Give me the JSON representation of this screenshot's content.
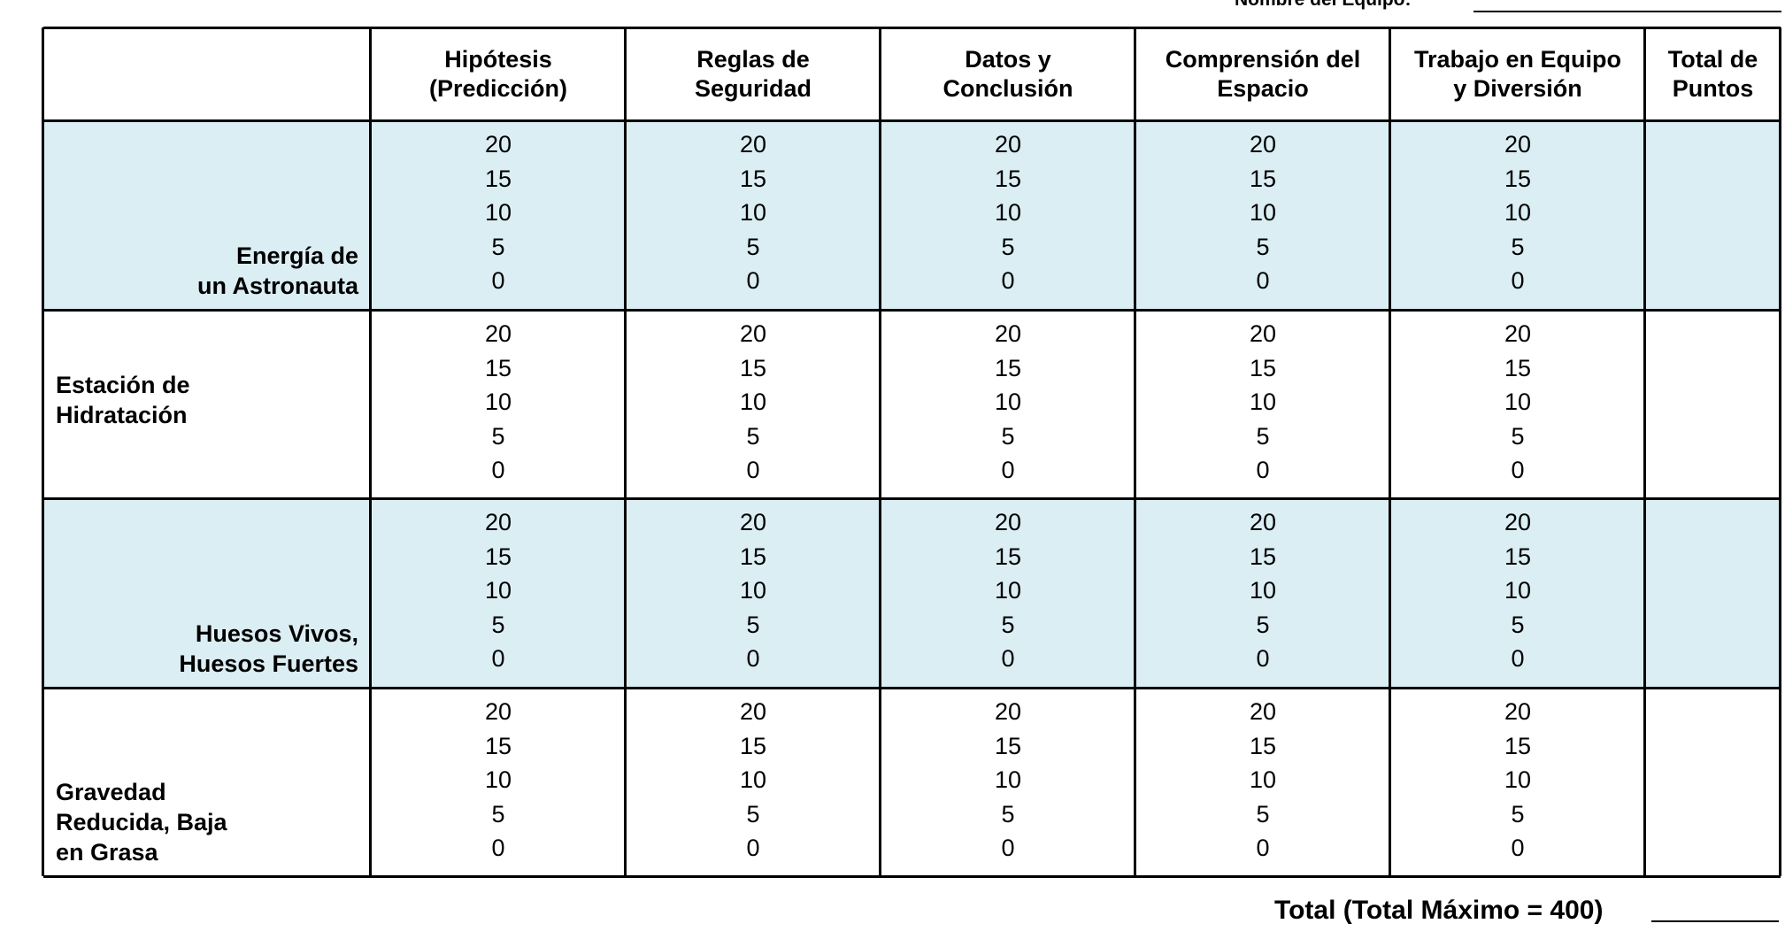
{
  "header": {
    "team_label": "Nombre del Equipo:"
  },
  "table": {
    "columns": [
      [
        "Hipótesis",
        "(Predicción)"
      ],
      [
        "Reglas de",
        "Seguridad"
      ],
      [
        "Datos y",
        "Conclusión"
      ],
      [
        "Comprensión del",
        "Espacio"
      ],
      [
        "Trabajo en Equipo",
        "y Diversión"
      ],
      [
        "Total de",
        "Puntos"
      ]
    ],
    "rows": [
      {
        "label": [
          "Energía de",
          "un Astronauta"
        ],
        "scores": [
          [
            20,
            15,
            10,
            5,
            0
          ],
          [
            20,
            15,
            10,
            5,
            0
          ],
          [
            20,
            15,
            10,
            5,
            0
          ],
          [
            20,
            15,
            10,
            5,
            0
          ],
          [
            20,
            15,
            10,
            5,
            0
          ]
        ]
      },
      {
        "label": [
          "Estación de",
          "Hidratación"
        ],
        "scores": [
          [
            20,
            15,
            10,
            5,
            0
          ],
          [
            20,
            15,
            10,
            5,
            0
          ],
          [
            20,
            15,
            10,
            5,
            0
          ],
          [
            20,
            15,
            10,
            5,
            0
          ],
          [
            20,
            15,
            10,
            5,
            0
          ]
        ]
      },
      {
        "label": [
          "Huesos Vivos,",
          "Huesos Fuertes"
        ],
        "scores": [
          [
            20,
            15,
            10,
            5,
            0
          ],
          [
            20,
            15,
            10,
            5,
            0
          ],
          [
            20,
            15,
            10,
            5,
            0
          ],
          [
            20,
            15,
            10,
            5,
            0
          ],
          [
            20,
            15,
            10,
            5,
            0
          ]
        ]
      },
      {
        "label": [
          "Gravedad",
          "Reducida, Baja",
          "en Grasa"
        ],
        "scores": [
          [
            20,
            15,
            10,
            5,
            0
          ],
          [
            20,
            15,
            10,
            5,
            0
          ],
          [
            20,
            15,
            10,
            5,
            0
          ],
          [
            20,
            15,
            10,
            5,
            0
          ],
          [
            20,
            15,
            10,
            5,
            0
          ]
        ]
      }
    ]
  },
  "footer": {
    "total_label": "Total (Total Máximo = 400)"
  }
}
